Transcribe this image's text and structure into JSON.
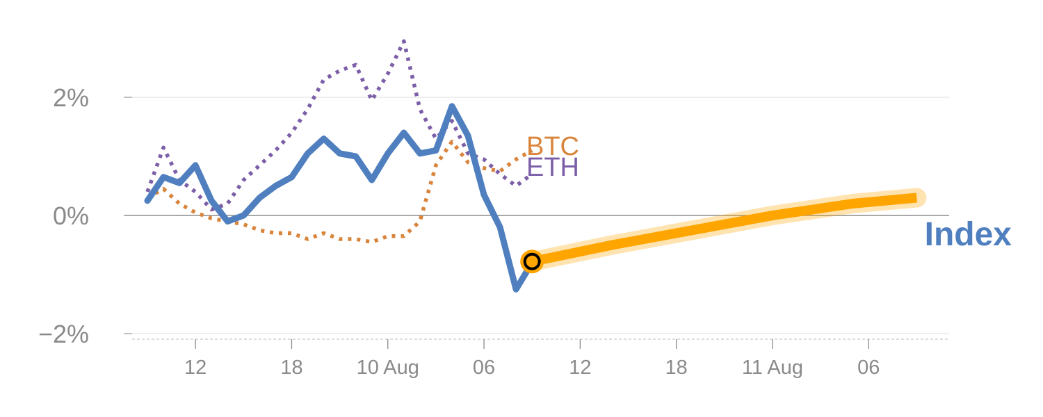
{
  "chart_data": {
    "type": "line",
    "y_unit": "%",
    "ylim": [
      -2,
      3
    ],
    "y_ticks": [
      {
        "value": 2,
        "label": "2%"
      },
      {
        "value": 0,
        "label": "0%"
      },
      {
        "value": -2,
        "label": "−2%"
      }
    ],
    "x_ticks": [
      {
        "index": 3,
        "label": "12"
      },
      {
        "index": 9,
        "label": "18"
      },
      {
        "index": 15,
        "label": "10 Aug"
      },
      {
        "index": 21,
        "label": "06"
      },
      {
        "index": 27,
        "label": "12"
      },
      {
        "index": 33,
        "label": "18"
      },
      {
        "index": 39,
        "label": "11 Aug"
      },
      {
        "index": 45,
        "label": "06"
      }
    ],
    "x_range": [
      0,
      50
    ],
    "grid": "horizontal",
    "zero_line": true,
    "series": [
      {
        "name": "ETH",
        "style": "dotted",
        "color": "#7b5ea7",
        "x": [
          0,
          1,
          2,
          3,
          4,
          5,
          6,
          7,
          8,
          9,
          10,
          11,
          12,
          13,
          14,
          15,
          16,
          17,
          18,
          19,
          20,
          21,
          22,
          23,
          24
        ],
        "values": [
          0.4,
          1.15,
          0.6,
          0.4,
          0.1,
          0.2,
          0.6,
          0.85,
          1.1,
          1.4,
          1.8,
          2.3,
          2.45,
          2.55,
          1.95,
          2.4,
          2.95,
          1.8,
          1.3,
          1.6,
          1.05,
          0.95,
          0.7,
          0.5,
          0.7
        ]
      },
      {
        "name": "BTC",
        "style": "dotted",
        "color": "#d9843b",
        "x": [
          0,
          1,
          2,
          3,
          4,
          5,
          6,
          7,
          8,
          9,
          10,
          11,
          12,
          13,
          14,
          15,
          16,
          17,
          18,
          19,
          20,
          21,
          22,
          23,
          24
        ],
        "values": [
          0.3,
          0.45,
          0.2,
          0.05,
          -0.05,
          -0.1,
          -0.15,
          -0.25,
          -0.3,
          -0.3,
          -0.4,
          -0.3,
          -0.4,
          -0.4,
          -0.45,
          -0.35,
          -0.35,
          -0.1,
          0.85,
          1.25,
          0.9,
          0.8,
          0.75,
          0.95,
          1.1
        ]
      },
      {
        "name": "Index",
        "style": "solid",
        "color": "#4f7fbf",
        "x": [
          0,
          1,
          2,
          3,
          4,
          5,
          6,
          7,
          8,
          9,
          10,
          11,
          12,
          13,
          14,
          15,
          16,
          17,
          18,
          19,
          20,
          21,
          22,
          23,
          24
        ],
        "values": [
          0.25,
          0.65,
          0.55,
          0.85,
          0.25,
          -0.1,
          0.0,
          0.3,
          0.5,
          0.65,
          1.05,
          1.3,
          1.05,
          1.0,
          0.6,
          1.05,
          1.4,
          1.05,
          1.1,
          1.85,
          1.35,
          0.35,
          -0.2,
          -1.25,
          -0.8
        ]
      },
      {
        "name": "",
        "style": "projection",
        "color": "#ffa500",
        "x": [
          24,
          29,
          34,
          39,
          44,
          48
        ],
        "values": [
          -0.78,
          -0.5,
          -0.25,
          0.0,
          0.2,
          0.3
        ]
      }
    ],
    "marker": {
      "x": 24,
      "y": -0.78,
      "fill": "#ffa500",
      "stroke": "#000000"
    },
    "labels": [
      {
        "text": "BTC",
        "color": "#d9843b"
      },
      {
        "text": "ETH",
        "color": "#7b5ea7"
      },
      {
        "text": "Index",
        "color": "#4f7fbf"
      }
    ]
  }
}
